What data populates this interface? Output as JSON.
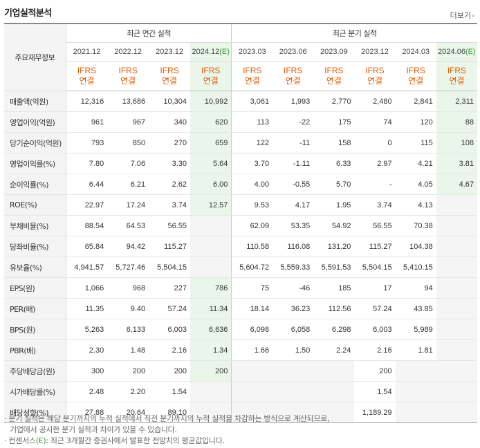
{
  "header": {
    "title": "기업실적분석",
    "more_label": "더보기"
  },
  "table": {
    "row_header_label": "주요재무정보",
    "annual_group_label": "최근 연간 실적",
    "quarter_group_label": "최근 분기 실적",
    "annual_periods": [
      "2021.12",
      "2022.12",
      "2023.12",
      "2024.12"
    ],
    "annual_estimate_suffix": "(E)",
    "quarter_periods": [
      "2023.03",
      "2023.06",
      "2023.09",
      "2023.12",
      "2024.03",
      "2024.06"
    ],
    "quarter_estimate_suffix": "(E)",
    "ifrs_top": "IFRS",
    "ifrs_bottom": "연결",
    "rows": [
      {
        "label": "매출액(억원)",
        "values": [
          "12,316",
          "13,686",
          "10,304",
          "10,992",
          "3,061",
          "1,993",
          "2,770",
          "2,480",
          "2,841",
          "2,311"
        ]
      },
      {
        "label": "영업이익(억원)",
        "values": [
          "961",
          "967",
          "340",
          "620",
          "113",
          "-22",
          "175",
          "74",
          "120",
          "88"
        ]
      },
      {
        "label": "당기순이익(억원)",
        "values": [
          "793",
          "850",
          "270",
          "659",
          "122",
          "-11",
          "158",
          "0",
          "115",
          "108"
        ]
      },
      {
        "label": "영업이익률(%)",
        "values": [
          "7.80",
          "7.06",
          "3.30",
          "5.64",
          "3.70",
          "-1.11",
          "6.33",
          "2.97",
          "4.21",
          "3.81"
        ]
      },
      {
        "label": "순이익률(%)",
        "values": [
          "6.44",
          "6.21",
          "2.62",
          "6.00",
          "4.00",
          "-0.55",
          "5.70",
          "-",
          "4.05",
          "4.67"
        ]
      },
      {
        "label": "ROE(%)",
        "values": [
          "22.97",
          "17.24",
          "3.74",
          "12.57",
          "9.53",
          "4.17",
          "1.95",
          "3.74",
          "4.13",
          ""
        ]
      },
      {
        "label": "부채비율(%)",
        "values": [
          "88.54",
          "64.53",
          "56.55",
          "",
          "62.09",
          "53.35",
          "54.92",
          "56.55",
          "70.38",
          ""
        ]
      },
      {
        "label": "당좌비율(%)",
        "values": [
          "65.84",
          "94.42",
          "115.27",
          "",
          "110.58",
          "116.08",
          "131.20",
          "115.27",
          "104.38",
          ""
        ]
      },
      {
        "label": "유보율(%)",
        "values": [
          "4,941.57",
          "5,727.46",
          "5,504.15",
          "",
          "5,604.72",
          "5,559.33",
          "5,591.53",
          "5,504.15",
          "5,410.15",
          ""
        ]
      },
      {
        "label": "EPS(원)",
        "values": [
          "1,066",
          "968",
          "227",
          "786",
          "75",
          "-46",
          "185",
          "17",
          "94",
          ""
        ]
      },
      {
        "label": "PER(배)",
        "values": [
          "11.35",
          "9.40",
          "57.24",
          "11.34",
          "18.14",
          "36.23",
          "112.56",
          "57.24",
          "43.85",
          ""
        ]
      },
      {
        "label": "BPS(원)",
        "values": [
          "5,263",
          "6,133",
          "6,003",
          "6,636",
          "6,098",
          "6,058",
          "6,298",
          "6,003",
          "5,989",
          ""
        ]
      },
      {
        "label": "PBR(배)",
        "values": [
          "2.30",
          "1.48",
          "2.16",
          "1.34",
          "1.66",
          "1.50",
          "2.24",
          "2.16",
          "1.81",
          ""
        ]
      },
      {
        "label": "주당배당금(원)",
        "values": [
          "300",
          "200",
          "200",
          "200",
          "",
          "",
          "",
          "200",
          "",
          ""
        ]
      },
      {
        "label": "시가배당률(%)",
        "values": [
          "2.48",
          "2.20",
          "1.54",
          "",
          "",
          "",
          "",
          "1.54",
          "",
          ""
        ]
      },
      {
        "label": "배당성향(%)",
        "values": [
          "27.88",
          "20.64",
          "89.10",
          "",
          "",
          "",
          "",
          "1,189.29",
          "",
          ""
        ]
      }
    ]
  },
  "notes": {
    "line1": "· 분기 실적은 해당 분기까지의 누적 실적에서 직전 분기까지의 누적 실적을 차감하는 방식으로 계산되므로,",
    "line2": "기업에서 공시한 분기 실적과 차이가 있을 수 있습니다.",
    "line3_prefix": "· 컨센서스",
    "line3_e": "(E)",
    "line3_suffix": ": 최근 3개월간 증권사에서 발표한 전망치의 평균값입니다."
  },
  "colors": {
    "negative": "#e01e1e",
    "ifrs": "#e05a00",
    "estimate_bg": "#eaf6e9",
    "estimate_text": "#3c9a3c"
  }
}
